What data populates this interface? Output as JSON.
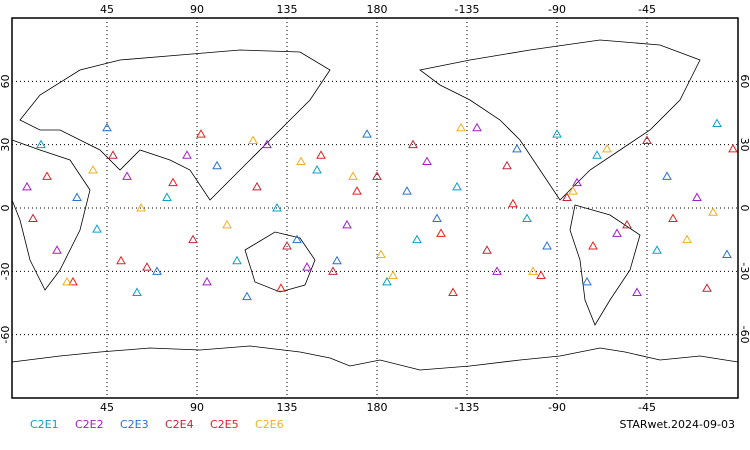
{
  "chart_data": {
    "type": "scatter",
    "xlim": [
      -2.5,
      360.5
    ],
    "ylim": [
      -90,
      90
    ],
    "xticks": [
      45,
      90,
      135,
      180,
      {
        "value": 225,
        "label": "-135"
      },
      {
        "value": 270,
        "label": "-90"
      },
      {
        "value": 315,
        "label": "-45"
      }
    ],
    "yticks": [
      -60,
      -30,
      0,
      30,
      60
    ],
    "grid": true,
    "series": [
      {
        "name": "C2E1",
        "color": "#0aa0c8",
        "x": [
          12,
          40,
          75,
          110,
          150,
          185,
          220,
          255,
          290,
          320,
          350,
          60,
          200,
          270,
          130
        ],
        "values": [
          30,
          -10,
          5,
          -25,
          18,
          -35,
          10,
          -5,
          25,
          -20,
          40,
          -40,
          -15,
          35,
          0
        ]
      },
      {
        "name": "C2E2",
        "color": "#a020c0",
        "x": [
          20,
          55,
          95,
          125,
          165,
          205,
          240,
          280,
          310,
          340,
          5,
          145,
          230,
          300,
          85
        ],
        "values": [
          -20,
          15,
          -35,
          30,
          -8,
          22,
          -30,
          12,
          -40,
          5,
          10,
          -28,
          38,
          -12,
          25
        ]
      },
      {
        "name": "C2E3",
        "color": "#2a72d4",
        "x": [
          30,
          70,
          100,
          140,
          175,
          210,
          250,
          285,
          325,
          355,
          115,
          195,
          265,
          45,
          160
        ],
        "values": [
          5,
          -30,
          20,
          -15,
          35,
          -5,
          28,
          -35,
          15,
          -22,
          -42,
          8,
          -18,
          38,
          -25
        ]
      },
      {
        "name": "C2E4",
        "color": "#c02838",
        "x": [
          8,
          48,
          88,
          120,
          158,
          198,
          235,
          275,
          315,
          345,
          65,
          180,
          245,
          305,
          135
        ],
        "values": [
          -5,
          25,
          -15,
          10,
          -30,
          30,
          -20,
          5,
          32,
          -38,
          -28,
          15,
          20,
          -8,
          -18
        ]
      },
      {
        "name": "C2E5",
        "color": "#e82020",
        "x": [
          15,
          52,
          92,
          132,
          170,
          212,
          248,
          288,
          328,
          358,
          78,
          152,
          262,
          218,
          28
        ],
        "values": [
          15,
          -25,
          35,
          -38,
          8,
          -12,
          2,
          -18,
          -5,
          28,
          12,
          25,
          -32,
          -40,
          -35
        ]
      },
      {
        "name": "C2E6",
        "color": "#f0b020",
        "x": [
          25,
          62,
          105,
          142,
          182,
          222,
          258,
          295,
          335,
          38,
          118,
          188,
          278,
          348,
          168
        ],
        "values": [
          -35,
          0,
          -8,
          22,
          -22,
          38,
          -30,
          28,
          -15,
          18,
          32,
          -32,
          8,
          -2,
          15
        ]
      }
    ],
    "footer": "STARwet.2024-09-03"
  }
}
